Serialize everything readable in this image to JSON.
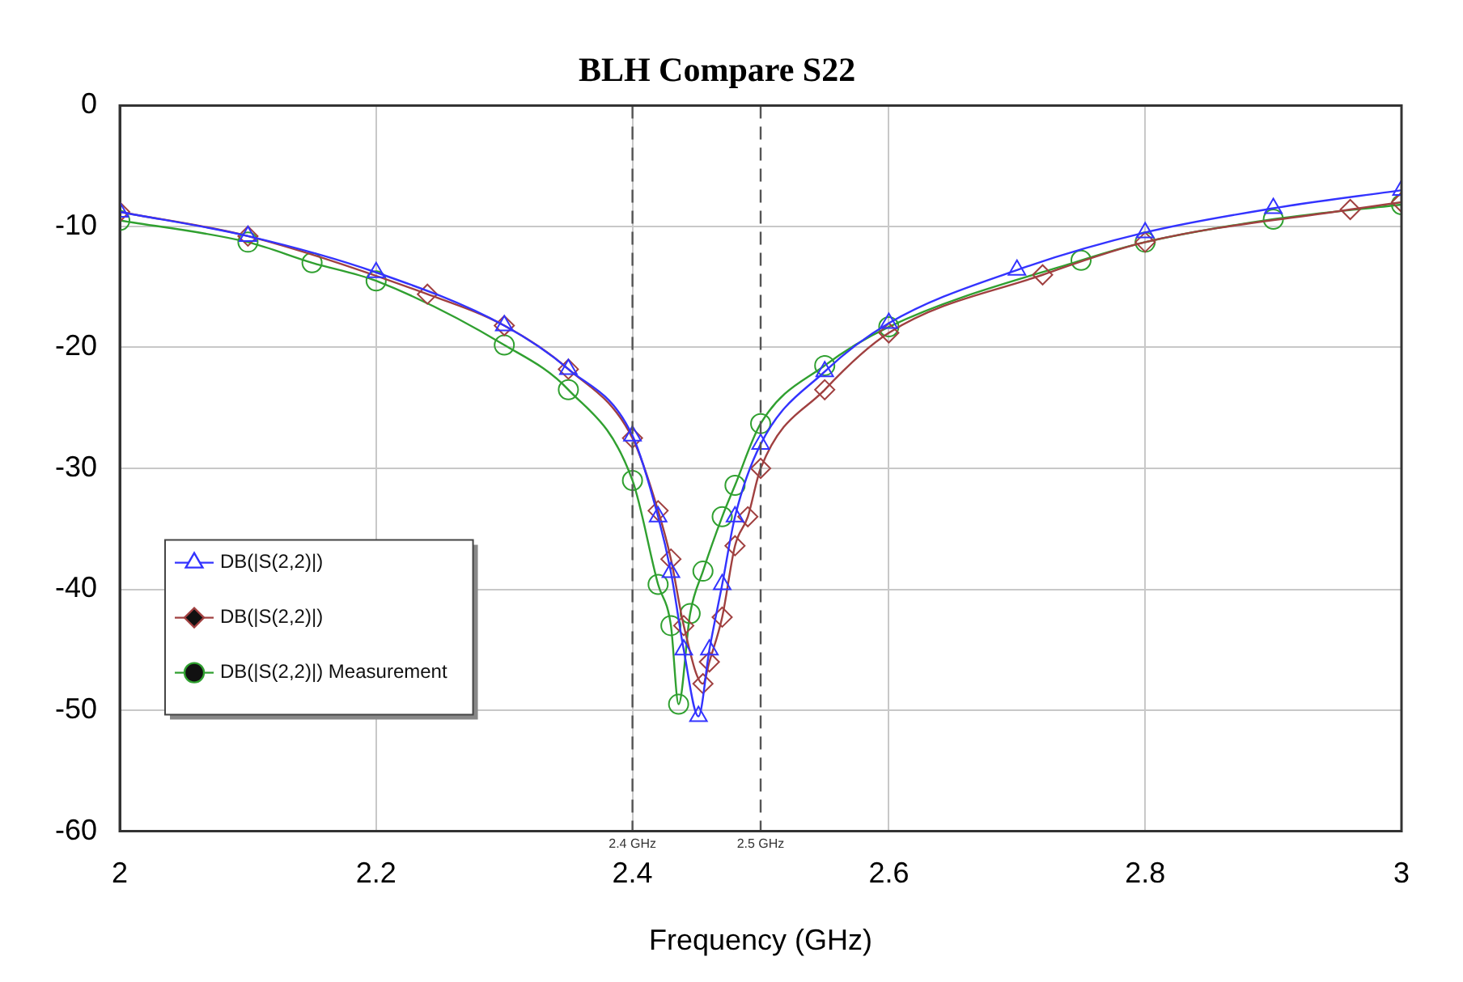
{
  "chart_data": {
    "type": "line",
    "title": "BLH Compare S22",
    "xlabel": "Frequency (GHz)",
    "xlim": [
      2,
      3
    ],
    "xticks": [
      2,
      2.2,
      2.4,
      2.6,
      2.8,
      3
    ],
    "ylim": [
      -60,
      0
    ],
    "yticks": [
      -60,
      -50,
      -40,
      -30,
      -20,
      -10,
      0
    ],
    "grid": true,
    "legend": "bottom left",
    "line_style": "solid",
    "ref_lines": [
      {
        "axis": "x",
        "value": 2.4,
        "label": "2.4 GHz",
        "line_style": "dashed",
        "color": "#555555"
      },
      {
        "axis": "x",
        "value": 2.5,
        "label": "2.5 GHz",
        "line_style": "dashed",
        "color": "#555555"
      }
    ],
    "series": [
      {
        "name": "DB(|S(2,2)|)",
        "color": "#3333ff",
        "marker": "triangle",
        "x": [
          2,
          2.1,
          2.2,
          2.3,
          2.35,
          2.4,
          2.42,
          2.43,
          2.44,
          2.4515,
          2.46,
          2.47,
          2.48,
          2.5,
          2.55,
          2.6,
          2.7,
          2.8,
          2.9,
          3
        ],
        "values": [
          -8.8,
          -10.8,
          -13.8,
          -18.2,
          -21.8,
          -27.3,
          -34,
          -38.6,
          -45,
          -50.5,
          -45,
          -39.6,
          -34,
          -28,
          -22,
          -18,
          -13.6,
          -10.5,
          -8.5,
          -7
        ]
      },
      {
        "name": "DB(|S(2,2)|)",
        "color": "#a04040",
        "marker": "diamond",
        "x": [
          2,
          2.1,
          2.24,
          2.3,
          2.35,
          2.4,
          2.42,
          2.43,
          2.44,
          2.455,
          2.46,
          2.47,
          2.48,
          2.49,
          2.5,
          2.55,
          2.6,
          2.72,
          2.8,
          2.96,
          3
        ],
        "values": [
          -8.8,
          -10.8,
          -15.6,
          -18.2,
          -21.8,
          -27.5,
          -33.5,
          -37.5,
          -43,
          -47.8,
          -46,
          -42.3,
          -36.4,
          -34,
          -30,
          -23.5,
          -18.8,
          -14,
          -11.3,
          -8.6,
          -8
        ]
      },
      {
        "name": "DB(|S(2,2)|) Measurement",
        "color": "#30a030",
        "marker": "circle",
        "x": [
          2,
          2.1,
          2.15,
          2.2,
          2.3,
          2.35,
          2.4,
          2.42,
          2.43,
          2.436,
          2.445,
          2.455,
          2.47,
          2.48,
          2.5,
          2.55,
          2.6,
          2.75,
          2.8,
          2.9,
          3
        ],
        "values": [
          -9.5,
          -11.3,
          -13,
          -14.5,
          -19.8,
          -23.5,
          -31,
          -39.6,
          -43,
          -49.5,
          -42,
          -38.5,
          -34,
          -31.4,
          -26.3,
          -21.5,
          -18.3,
          -12.8,
          -11.3,
          -9.4,
          -8.2
        ]
      }
    ]
  }
}
